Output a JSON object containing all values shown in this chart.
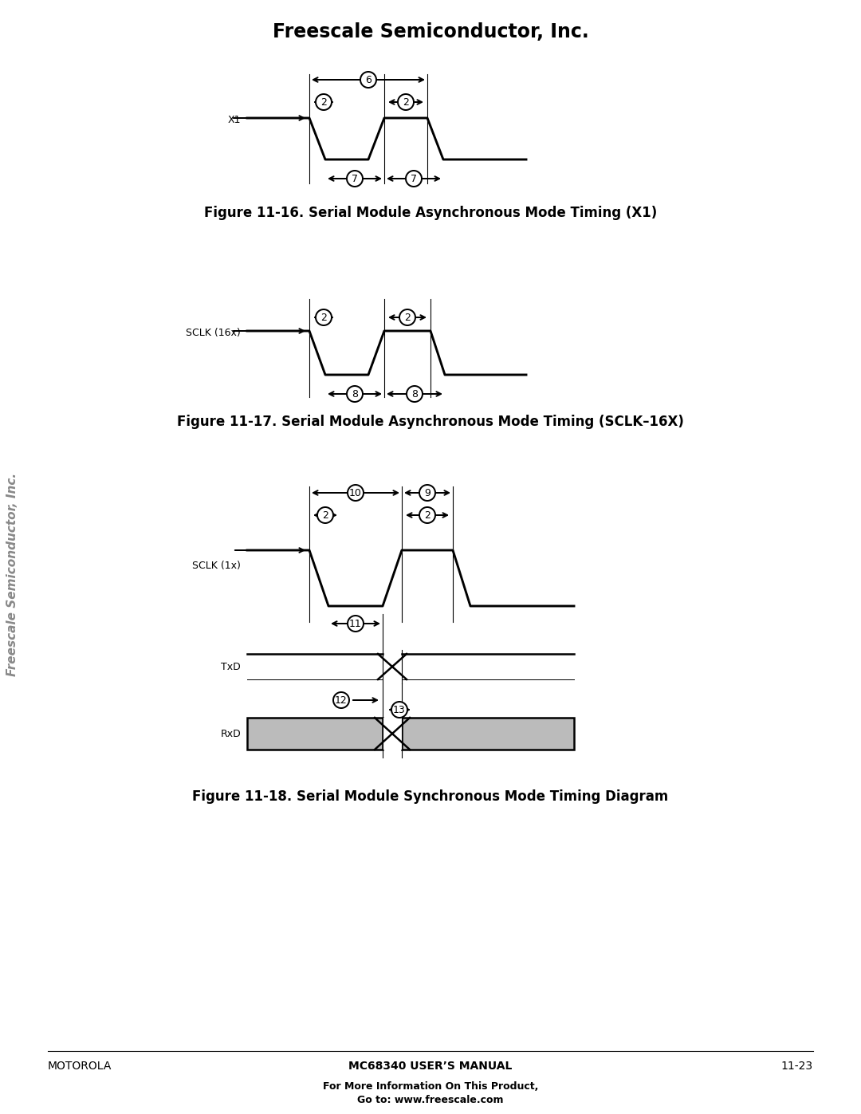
{
  "title": "Freescale Semiconductor, Inc.",
  "fig16_caption": "Figure 11-16. Serial Module Asynchronous Mode Timing (X1)",
  "fig17_caption": "Figure 11-17. Serial Module Asynchronous Mode Timing (SCLK–16X)",
  "fig18_caption": "Figure 11-18. Serial Module Synchronous Mode Timing Diagram",
  "footer_left": "MOTOROLA",
  "footer_center": "MC68340 USER’S MANUAL",
  "footer_right": "11-23",
  "footer_sub": "For More Information On This Product,\nGo to: www.freescale.com",
  "sidebar": "Freescale Semiconductor, Inc.",
  "bg_color": "#ffffff",
  "line_color": "#000000",
  "gray_fill": "#bbbbbb"
}
